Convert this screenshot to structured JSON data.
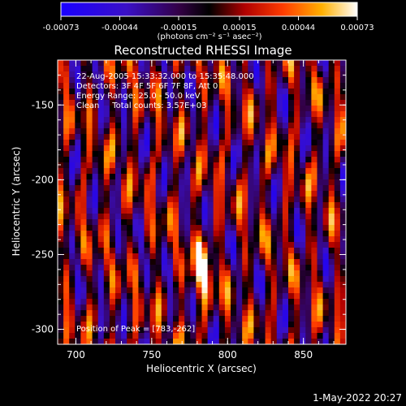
{
  "chart_data": {
    "type": "heatmap",
    "title": "Reconstructed RHESSI Image",
    "xlabel": "Heliocentric X (arcsec)",
    "ylabel": "Heliocentric Y (arcsec)",
    "xlim": [
      688,
      878
    ],
    "ylim": [
      -310,
      -120
    ],
    "x_ticks": [
      700,
      750,
      800,
      850
    ],
    "y_ticks": [
      -150,
      -200,
      -250,
      -300
    ],
    "colorbar": {
      "range": [
        -0.00073,
        0.00073
      ],
      "tick_values": [
        -0.00073,
        -0.00044,
        -0.00015,
        0.00015,
        0.00044,
        0.00073
      ],
      "tick_labels": [
        "-0.00073",
        "-0.00044",
        "-0.00015",
        "0.00015",
        "0.00044",
        "0.00073"
      ],
      "unit_label": "(photons cm⁻² s⁻¹ asec⁻²)"
    },
    "annotations": [
      "22-Aug-2005 15:33:32.000 to 15:35:48.000",
      "Detectors: 3F 4F 5F 6F 7F 8F, Att 0",
      "Energy Range: 25.0 - 50.0 keV",
      "Clean     Total counts: 3.57E+03"
    ],
    "peak_label": "Position of Peak = [783,-262]",
    "peak": [
      783,
      -262
    ],
    "colormap": "hot (black - purple - red - orange - yellow - white)"
  },
  "footer_date": "1-May-2022 20:27"
}
